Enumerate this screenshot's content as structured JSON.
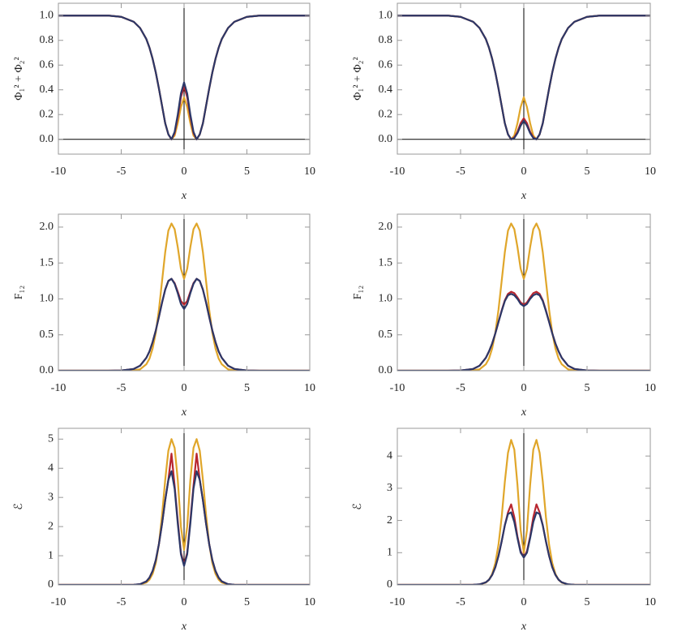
{
  "chart_data": [
    {
      "type": "line",
      "ylabel": "Φ₁² + Φ₂²",
      "xlabel": "x",
      "x": [
        -10,
        -8,
        -6,
        -5,
        -4,
        -3.5,
        -3,
        -2.75,
        -2.5,
        -2.25,
        -2,
        -1.75,
        -1.5,
        -1.25,
        -1,
        -0.75,
        -0.5,
        -0.25,
        0,
        0.25,
        0.5,
        0.75,
        1,
        1.25,
        1.5,
        1.75,
        2,
        2.25,
        2.5,
        2.75,
        3,
        3.5,
        4,
        5,
        6,
        8,
        10
      ],
      "series": [
        {
          "color": "#e0a62a",
          "values": [
            1,
            1,
            1,
            0.99,
            0.95,
            0.9,
            0.81,
            0.74,
            0.65,
            0.54,
            0.41,
            0.27,
            0.13,
            0.04,
            0,
            0.03,
            0.13,
            0.26,
            0.34,
            0.26,
            0.13,
            0.03,
            0,
            0.04,
            0.13,
            0.27,
            0.41,
            0.54,
            0.65,
            0.74,
            0.81,
            0.9,
            0.95,
            0.99,
            1,
            1,
            1
          ]
        },
        {
          "color": "#b8262f",
          "values": [
            1,
            1,
            1,
            0.99,
            0.95,
            0.9,
            0.81,
            0.74,
            0.65,
            0.54,
            0.41,
            0.27,
            0.13,
            0.04,
            0,
            0.05,
            0.18,
            0.34,
            0.43,
            0.34,
            0.18,
            0.05,
            0,
            0.04,
            0.13,
            0.27,
            0.41,
            0.54,
            0.65,
            0.74,
            0.81,
            0.9,
            0.95,
            0.99,
            1,
            1,
            1
          ]
        },
        {
          "color": "#2c3868",
          "values": [
            1,
            1,
            1,
            0.99,
            0.95,
            0.9,
            0.81,
            0.74,
            0.65,
            0.54,
            0.41,
            0.27,
            0.13,
            0.04,
            0,
            0.06,
            0.2,
            0.37,
            0.46,
            0.37,
            0.2,
            0.06,
            0,
            0.04,
            0.13,
            0.27,
            0.41,
            0.54,
            0.65,
            0.74,
            0.81,
            0.9,
            0.95,
            0.99,
            1,
            1,
            1
          ]
        }
      ],
      "xlim": [
        -10,
        10
      ],
      "ylim": [
        -0.12,
        1.1
      ],
      "xticks": [
        -10,
        -5,
        0,
        5,
        10
      ],
      "yticks": [
        {
          "value": 0,
          "label": "0.0"
        },
        0.2,
        0.4,
        0.6,
        0.8,
        {
          "value": 1,
          "label": "1.0"
        }
      ]
    },
    {
      "type": "line",
      "ylabel": "Φ₁² + Φ₂²",
      "xlabel": "x",
      "x": [
        -10,
        -8,
        -6,
        -5,
        -4,
        -3.5,
        -3,
        -2.75,
        -2.5,
        -2.25,
        -2,
        -1.75,
        -1.5,
        -1.25,
        -1,
        -0.75,
        -0.5,
        -0.25,
        0,
        0.25,
        0.5,
        0.75,
        1,
        1.25,
        1.5,
        1.75,
        2,
        2.25,
        2.5,
        2.75,
        3,
        3.5,
        4,
        5,
        6,
        8,
        10
      ],
      "series": [
        {
          "color": "#e0a62a",
          "values": [
            1,
            1,
            1,
            0.99,
            0.95,
            0.9,
            0.81,
            0.74,
            0.65,
            0.54,
            0.41,
            0.27,
            0.13,
            0.04,
            0,
            0.03,
            0.13,
            0.26,
            0.34,
            0.26,
            0.13,
            0.03,
            0,
            0.04,
            0.13,
            0.27,
            0.41,
            0.54,
            0.65,
            0.74,
            0.81,
            0.9,
            0.95,
            0.99,
            1,
            1,
            1
          ]
        },
        {
          "color": "#b8262f",
          "values": [
            1,
            1,
            1,
            0.99,
            0.95,
            0.9,
            0.81,
            0.74,
            0.65,
            0.54,
            0.41,
            0.27,
            0.13,
            0.04,
            0,
            0.015,
            0.06,
            0.13,
            0.17,
            0.13,
            0.06,
            0.015,
            0,
            0.04,
            0.13,
            0.27,
            0.41,
            0.54,
            0.65,
            0.74,
            0.81,
            0.9,
            0.95,
            0.99,
            1,
            1,
            1
          ]
        },
        {
          "color": "#2c3868",
          "values": [
            1,
            1,
            1,
            0.99,
            0.95,
            0.9,
            0.81,
            0.74,
            0.65,
            0.54,
            0.41,
            0.27,
            0.13,
            0.04,
            0,
            0.01,
            0.05,
            0.11,
            0.15,
            0.11,
            0.05,
            0.01,
            0,
            0.04,
            0.13,
            0.27,
            0.41,
            0.54,
            0.65,
            0.74,
            0.81,
            0.9,
            0.95,
            0.99,
            1,
            1,
            1
          ]
        }
      ],
      "xlim": [
        -10,
        10
      ],
      "ylim": [
        -0.12,
        1.1
      ],
      "xticks": [
        -10,
        -5,
        0,
        5,
        10
      ],
      "yticks": [
        {
          "value": 0,
          "label": "0.0"
        },
        0.2,
        0.4,
        0.6,
        0.8,
        {
          "value": 1,
          "label": "1.0"
        }
      ]
    },
    {
      "type": "line",
      "ylabel": "F₁₂",
      "xlabel": "x",
      "x": [
        -10,
        -8,
        -6,
        -5,
        -4,
        -3.5,
        -3,
        -2.75,
        -2.5,
        -2.25,
        -2,
        -1.75,
        -1.5,
        -1.25,
        -1,
        -0.75,
        -0.5,
        -0.25,
        0,
        0.25,
        0.5,
        0.75,
        1,
        1.25,
        1.5,
        1.75,
        2,
        2.25,
        2.5,
        2.75,
        3,
        3.5,
        4,
        5,
        6,
        8,
        10
      ],
      "series": [
        {
          "color": "#e0a62a",
          "values": [
            0,
            0,
            0,
            0,
            0.005,
            0.02,
            0.09,
            0.17,
            0.31,
            0.53,
            0.85,
            1.25,
            1.65,
            1.95,
            2.05,
            1.97,
            1.72,
            1.42,
            1.28,
            1.42,
            1.72,
            1.97,
            2.05,
            1.95,
            1.65,
            1.25,
            0.85,
            0.53,
            0.31,
            0.17,
            0.09,
            0.02,
            0.005,
            0,
            0,
            0,
            0
          ]
        },
        {
          "color": "#b8262f",
          "values": [
            0,
            0,
            0,
            0.003,
            0.025,
            0.07,
            0.18,
            0.27,
            0.4,
            0.56,
            0.75,
            0.95,
            1.13,
            1.25,
            1.28,
            1.22,
            1.1,
            0.97,
            0.92,
            0.97,
            1.1,
            1.22,
            1.28,
            1.25,
            1.13,
            0.95,
            0.75,
            0.56,
            0.4,
            0.27,
            0.18,
            0.07,
            0.025,
            0.003,
            0,
            0,
            0
          ]
        },
        {
          "color": "#2c3868",
          "values": [
            0,
            0,
            0,
            0.003,
            0.025,
            0.07,
            0.18,
            0.27,
            0.4,
            0.56,
            0.75,
            0.95,
            1.13,
            1.25,
            1.28,
            1.21,
            1.08,
            0.93,
            0.86,
            0.93,
            1.08,
            1.21,
            1.28,
            1.25,
            1.13,
            0.95,
            0.75,
            0.56,
            0.4,
            0.27,
            0.18,
            0.07,
            0.025,
            0.003,
            0,
            0,
            0
          ]
        }
      ],
      "xlim": [
        -10,
        10
      ],
      "ylim": [
        0,
        2.18
      ],
      "xticks": [
        -10,
        -5,
        0,
        5,
        10
      ],
      "yticks": [
        {
          "value": 0,
          "label": "0.0"
        },
        0.5,
        {
          "value": 1,
          "label": "1.0"
        },
        1.5,
        {
          "value": 2,
          "label": "2.0"
        }
      ]
    },
    {
      "type": "line",
      "ylabel": "F₁₂",
      "xlabel": "x",
      "x": [
        -10,
        -8,
        -6,
        -5,
        -4,
        -3.5,
        -3,
        -2.75,
        -2.5,
        -2.25,
        -2,
        -1.75,
        -1.5,
        -1.25,
        -1,
        -0.75,
        -0.5,
        -0.25,
        0,
        0.25,
        0.5,
        0.75,
        1,
        1.25,
        1.5,
        1.75,
        2,
        2.25,
        2.5,
        2.75,
        3,
        3.5,
        4,
        5,
        6,
        8,
        10
      ],
      "series": [
        {
          "color": "#e0a62a",
          "values": [
            0,
            0,
            0,
            0,
            0.005,
            0.02,
            0.09,
            0.17,
            0.31,
            0.53,
            0.85,
            1.25,
            1.65,
            1.95,
            2.05,
            1.97,
            1.72,
            1.42,
            1.28,
            1.42,
            1.72,
            1.97,
            2.05,
            1.95,
            1.65,
            1.25,
            0.85,
            0.53,
            0.31,
            0.17,
            0.09,
            0.02,
            0.005,
            0,
            0,
            0,
            0
          ]
        },
        {
          "color": "#b8262f",
          "values": [
            0,
            0,
            0,
            0.003,
            0.025,
            0.07,
            0.18,
            0.27,
            0.38,
            0.52,
            0.68,
            0.84,
            0.98,
            1.07,
            1.1,
            1.08,
            1.02,
            0.95,
            0.92,
            0.95,
            1.02,
            1.08,
            1.1,
            1.07,
            0.98,
            0.84,
            0.68,
            0.52,
            0.38,
            0.27,
            0.18,
            0.07,
            0.025,
            0.003,
            0,
            0,
            0
          ]
        },
        {
          "color": "#2c3868",
          "values": [
            0,
            0,
            0,
            0.003,
            0.025,
            0.07,
            0.18,
            0.27,
            0.38,
            0.52,
            0.68,
            0.83,
            0.97,
            1.05,
            1.07,
            1.05,
            1.0,
            0.93,
            0.9,
            0.93,
            1.0,
            1.05,
            1.07,
            1.05,
            0.97,
            0.83,
            0.68,
            0.52,
            0.38,
            0.27,
            0.18,
            0.07,
            0.025,
            0.003,
            0,
            0,
            0
          ]
        }
      ],
      "xlim": [
        -10,
        10
      ],
      "ylim": [
        0,
        2.18
      ],
      "xticks": [
        -10,
        -5,
        0,
        5,
        10
      ],
      "yticks": [
        {
          "value": 0,
          "label": "0.0"
        },
        0.5,
        {
          "value": 1,
          "label": "1.0"
        },
        1.5,
        {
          "value": 2,
          "label": "2.0"
        }
      ]
    },
    {
      "type": "line",
      "ylabel": "ℰ",
      "xlabel": "x",
      "x": [
        -10,
        -8,
        -6,
        -5,
        -4,
        -3.5,
        -3,
        -2.75,
        -2.5,
        -2.25,
        -2,
        -1.75,
        -1.5,
        -1.25,
        -1,
        -0.75,
        -0.5,
        -0.25,
        0,
        0.25,
        0.5,
        0.75,
        1,
        1.25,
        1.5,
        1.75,
        2,
        2.25,
        2.5,
        2.75,
        3,
        3.5,
        4,
        5,
        6,
        8,
        10
      ],
      "series": [
        {
          "color": "#e0a62a",
          "values": [
            0,
            0,
            0,
            0,
            0.003,
            0.015,
            0.08,
            0.18,
            0.38,
            0.75,
            1.4,
            2.4,
            3.6,
            4.6,
            5.0,
            4.7,
            3.6,
            2.0,
            1.2,
            2.0,
            3.6,
            4.7,
            5.0,
            4.6,
            3.6,
            2.4,
            1.4,
            0.75,
            0.38,
            0.18,
            0.08,
            0.015,
            0.003,
            0,
            0,
            0,
            0
          ]
        },
        {
          "color": "#b8262f",
          "values": [
            0,
            0,
            0,
            0,
            0.005,
            0.025,
            0.12,
            0.25,
            0.48,
            0.85,
            1.4,
            2.1,
            2.9,
            3.6,
            4.5,
            3.4,
            2.2,
            1.1,
            0.7,
            1.1,
            2.2,
            3.4,
            4.5,
            3.6,
            2.9,
            2.1,
            1.4,
            0.85,
            0.48,
            0.25,
            0.12,
            0.025,
            0.005,
            0,
            0,
            0,
            0
          ]
        },
        {
          "color": "#2c3868",
          "values": [
            0,
            0,
            0,
            0,
            0.005,
            0.025,
            0.12,
            0.25,
            0.48,
            0.85,
            1.4,
            2.1,
            2.9,
            3.6,
            3.9,
            3.3,
            2.1,
            1.05,
            0.65,
            1.05,
            2.1,
            3.3,
            3.9,
            3.6,
            2.9,
            2.1,
            1.4,
            0.85,
            0.48,
            0.25,
            0.12,
            0.025,
            0.005,
            0,
            0,
            0,
            0
          ]
        }
      ],
      "xlim": [
        -10,
        10
      ],
      "ylim": [
        0,
        5.37
      ],
      "xticks": [
        -10,
        -5,
        0,
        5,
        10
      ],
      "yticks": [
        0,
        1,
        2,
        3,
        4,
        5
      ]
    },
    {
      "type": "line",
      "ylabel": "ℰ",
      "xlabel": "x",
      "x": [
        -10,
        -8,
        -6,
        -5,
        -4,
        -3.5,
        -3,
        -2.75,
        -2.5,
        -2.25,
        -2,
        -1.75,
        -1.5,
        -1.25,
        -1,
        -0.75,
        -0.5,
        -0.25,
        0,
        0.25,
        0.5,
        0.75,
        1,
        1.25,
        1.5,
        1.75,
        2,
        2.25,
        2.5,
        2.75,
        3,
        3.5,
        4,
        5,
        6,
        8,
        10
      ],
      "series": [
        {
          "color": "#e0a62a",
          "values": [
            0,
            0,
            0,
            0,
            0.003,
            0.013,
            0.07,
            0.16,
            0.34,
            0.68,
            1.25,
            2.1,
            3.2,
            4.1,
            4.5,
            4.2,
            3.1,
            1.7,
            1.0,
            1.7,
            3.1,
            4.2,
            4.5,
            4.1,
            3.2,
            2.1,
            1.25,
            0.68,
            0.34,
            0.16,
            0.07,
            0.013,
            0.003,
            0,
            0,
            0,
            0
          ]
        },
        {
          "color": "#b8262f",
          "values": [
            0,
            0,
            0,
            0,
            0.003,
            0.016,
            0.08,
            0.16,
            0.31,
            0.55,
            0.9,
            1.35,
            1.85,
            2.25,
            2.5,
            2.1,
            1.5,
            1.05,
            0.85,
            1.05,
            1.5,
            2.1,
            2.5,
            2.25,
            1.85,
            1.35,
            0.9,
            0.55,
            0.31,
            0.16,
            0.08,
            0.016,
            0.003,
            0,
            0,
            0,
            0
          ]
        },
        {
          "color": "#2c3868",
          "values": [
            0,
            0,
            0,
            0,
            0.003,
            0.016,
            0.08,
            0.16,
            0.31,
            0.55,
            0.9,
            1.35,
            1.85,
            2.2,
            2.25,
            1.95,
            1.45,
            1.0,
            0.85,
            1.0,
            1.45,
            1.95,
            2.25,
            2.2,
            1.85,
            1.35,
            0.9,
            0.55,
            0.31,
            0.16,
            0.08,
            0.016,
            0.003,
            0,
            0,
            0,
            0
          ]
        }
      ],
      "xlim": [
        -10,
        10
      ],
      "ylim": [
        0,
        4.86
      ],
      "xticks": [
        -10,
        -5,
        0,
        5,
        10
      ],
      "yticks": [
        0,
        1,
        2,
        3,
        4
      ]
    }
  ]
}
